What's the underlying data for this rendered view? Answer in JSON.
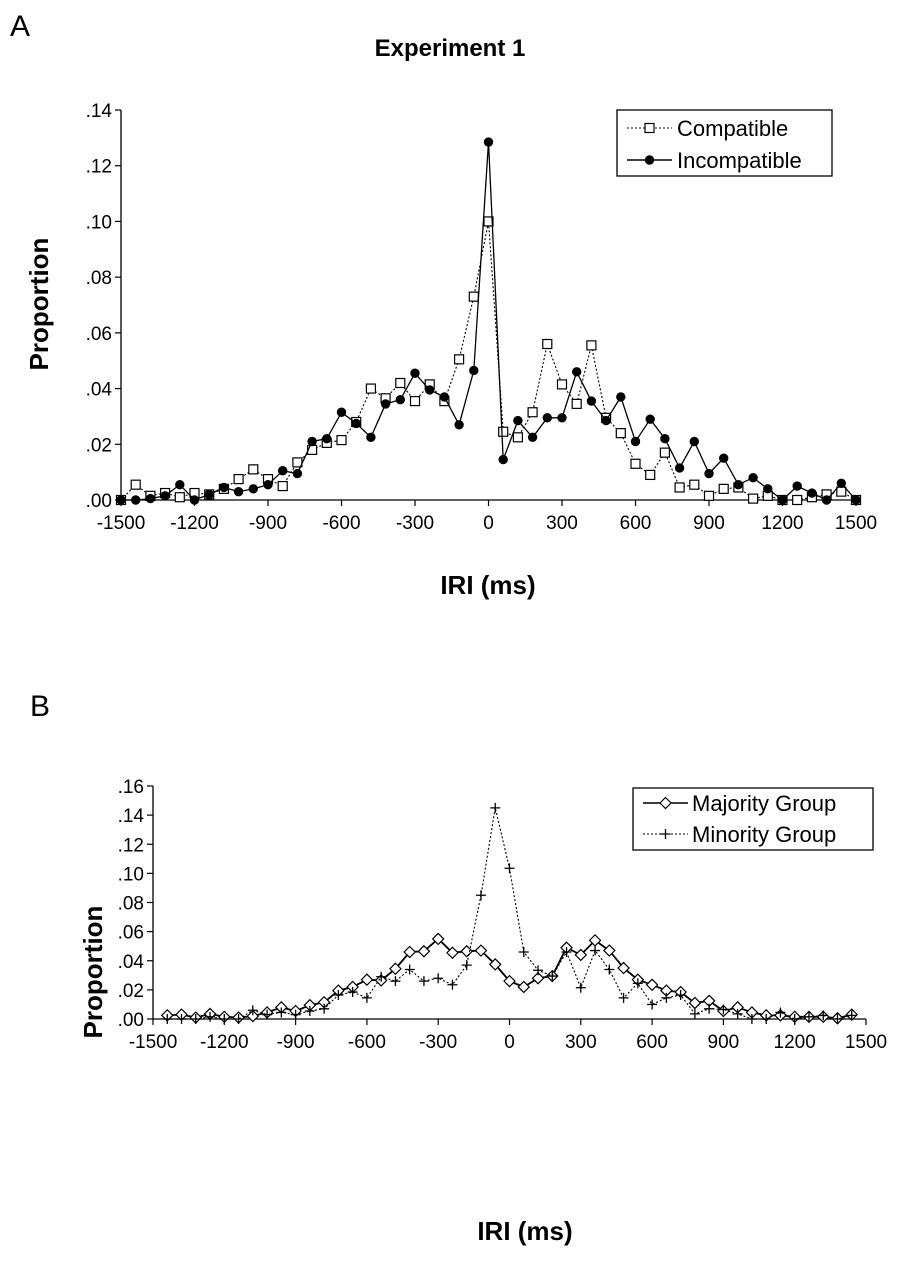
{
  "charts": [
    {
      "panel_label": "A",
      "title": "Experiment 1",
      "xlabel": "IRI (ms)",
      "ylabel": "Proportion",
      "xlim": [
        -1500,
        1500
      ],
      "ylim": [
        0,
        0.14
      ],
      "x_ticks": [
        -1500,
        -1200,
        -900,
        -600,
        -300,
        0,
        300,
        600,
        900,
        1200,
        1500
      ],
      "x_tick_labels": [
        "-1500",
        "-1200",
        "-900",
        "-600",
        "-300",
        "0",
        "300",
        "600",
        "900",
        "1200",
        "1500"
      ],
      "y_ticks": [
        0,
        0.02,
        0.04,
        0.06,
        0.08,
        0.1,
        0.12,
        0.14
      ],
      "y_tick_labels": [
        ".00",
        ".02",
        ".04",
        ".06",
        ".08",
        ".10",
        ".12",
        ".14"
      ],
      "legend": [
        "Compatible",
        "Incompatible"
      ]
    },
    {
      "panel_label": "B",
      "title": "",
      "xlabel": "IRI (ms)",
      "ylabel": "Proportion",
      "xlim": [
        -1500,
        1500
      ],
      "ylim": [
        0,
        0.16
      ],
      "x_ticks": [
        -1500,
        -1200,
        -900,
        -600,
        -300,
        0,
        300,
        600,
        900,
        1200,
        1500
      ],
      "x_tick_labels": [
        "-1500",
        "-1200",
        "-900",
        "-600",
        "-300",
        "0",
        "300",
        "600",
        "900",
        "1200",
        "1500"
      ],
      "y_ticks": [
        0,
        0.02,
        0.04,
        0.06,
        0.08,
        0.1,
        0.12,
        0.14,
        0.16
      ],
      "y_tick_labels": [
        ".00",
        ".02",
        ".04",
        ".06",
        ".08",
        ".10",
        ".12",
        ".14",
        ".16"
      ],
      "legend": [
        "Majority Group",
        "Minority Group"
      ]
    }
  ],
  "chart_data": [
    {
      "type": "line",
      "title": "Experiment 1",
      "xlabel": "IRI (ms)",
      "ylabel": "Proportion",
      "xlim": [
        -1500,
        1500
      ],
      "ylim": [
        0,
        0.14
      ],
      "grid": false,
      "legend_position": "top-right",
      "series": [
        {
          "name": "Compatible",
          "line_style": "dotted",
          "marker": "open-square",
          "x": [
            -1500,
            -1440,
            -1380,
            -1320,
            -1260,
            -1200,
            -1140,
            -1080,
            -1020,
            -960,
            -900,
            -840,
            -780,
            -720,
            -660,
            -600,
            -540,
            -480,
            -420,
            -360,
            -300,
            -240,
            -180,
            -120,
            -60,
            0,
            60,
            120,
            180,
            240,
            300,
            360,
            420,
            480,
            540,
            600,
            660,
            720,
            780,
            840,
            900,
            960,
            1020,
            1080,
            1140,
            1200,
            1260,
            1320,
            1380,
            1440,
            1500
          ],
          "y": [
            0.0,
            0.0055,
            0.0015,
            0.0025,
            0.001,
            0.0025,
            0.002,
            0.004,
            0.0075,
            0.011,
            0.0075,
            0.005,
            0.0135,
            0.018,
            0.0205,
            0.0215,
            0.028,
            0.04,
            0.0365,
            0.042,
            0.0355,
            0.0415,
            0.0355,
            0.0505,
            0.073,
            0.1,
            0.0245,
            0.0225,
            0.0315,
            0.056,
            0.0415,
            0.0345,
            0.0555,
            0.0295,
            0.024,
            0.013,
            0.009,
            0.017,
            0.0045,
            0.0055,
            0.0015,
            0.004,
            0.0045,
            0.0005,
            0.0015,
            0.0,
            0.0,
            0.001,
            0.002,
            0.003,
            0.0
          ]
        },
        {
          "name": "Incompatible",
          "line_style": "solid",
          "marker": "filled-circle",
          "x": [
            -1500,
            -1440,
            -1380,
            -1320,
            -1260,
            -1200,
            -1140,
            -1080,
            -1020,
            -960,
            -900,
            -840,
            -780,
            -720,
            -660,
            -600,
            -540,
            -480,
            -420,
            -360,
            -300,
            -240,
            -180,
            -120,
            -60,
            0,
            60,
            120,
            180,
            240,
            300,
            360,
            420,
            480,
            540,
            600,
            660,
            720,
            780,
            840,
            900,
            960,
            1020,
            1080,
            1140,
            1200,
            1260,
            1320,
            1380,
            1440,
            1500
          ],
          "y": [
            0.0,
            0.0,
            0.0005,
            0.0015,
            0.0055,
            0.0,
            0.002,
            0.0045,
            0.003,
            0.004,
            0.0055,
            0.0105,
            0.0095,
            0.021,
            0.022,
            0.0315,
            0.0275,
            0.0225,
            0.0345,
            0.036,
            0.0455,
            0.0395,
            0.037,
            0.027,
            0.0465,
            0.1285,
            0.0145,
            0.0285,
            0.0225,
            0.0295,
            0.0295,
            0.046,
            0.0355,
            0.0285,
            0.037,
            0.021,
            0.029,
            0.022,
            0.0115,
            0.021,
            0.0095,
            0.015,
            0.0055,
            0.008,
            0.004,
            0.0,
            0.005,
            0.0025,
            0.0,
            0.006,
            0.0
          ]
        }
      ]
    },
    {
      "type": "line",
      "xlabel": "IRI (ms)",
      "ylabel": "Proportion",
      "xlim": [
        -1500,
        1500
      ],
      "ylim": [
        0,
        0.16
      ],
      "grid": false,
      "legend_position": "top-right",
      "series": [
        {
          "name": "Majority Group",
          "line_style": "solid",
          "marker": "open-diamond",
          "x": [
            -1440,
            -1380,
            -1320,
            -1260,
            -1200,
            -1140,
            -1080,
            -1020,
            -960,
            -900,
            -840,
            -780,
            -720,
            -660,
            -600,
            -540,
            -480,
            -420,
            -360,
            -300,
            -240,
            -180,
            -120,
            -60,
            0,
            60,
            120,
            180,
            240,
            300,
            360,
            420,
            480,
            540,
            600,
            660,
            720,
            780,
            840,
            900,
            960,
            1020,
            1080,
            1140,
            1200,
            1260,
            1320,
            1380,
            1440
          ],
          "y": [
            0.0025,
            0.003,
            0.001,
            0.0035,
            0.0015,
            0.001,
            0.002,
            0.0045,
            0.008,
            0.0055,
            0.0095,
            0.0115,
            0.0195,
            0.022,
            0.027,
            0.0265,
            0.0345,
            0.046,
            0.0465,
            0.055,
            0.0455,
            0.0465,
            0.047,
            0.0375,
            0.026,
            0.022,
            0.028,
            0.0295,
            0.049,
            0.044,
            0.054,
            0.047,
            0.035,
            0.027,
            0.0235,
            0.0195,
            0.0185,
            0.011,
            0.0125,
            0.0055,
            0.008,
            0.0045,
            0.0025,
            0.0025,
            0.0015,
            0.0015,
            0.0015,
            0.0005,
            0.003
          ]
        },
        {
          "name": "Minority Group",
          "line_style": "dotted",
          "marker": "plus",
          "x": [
            -1440,
            -1380,
            -1320,
            -1260,
            -1200,
            -1140,
            -1080,
            -1020,
            -960,
            -900,
            -840,
            -780,
            -720,
            -660,
            -600,
            -540,
            -480,
            -420,
            -360,
            -300,
            -240,
            -180,
            -120,
            -60,
            0,
            60,
            120,
            180,
            240,
            300,
            360,
            420,
            480,
            540,
            600,
            660,
            720,
            780,
            840,
            900,
            960,
            1020,
            1080,
            1140,
            1200,
            1260,
            1320,
            1380,
            1440
          ],
          "y": [
            0.0,
            0.0,
            0.0,
            0.0015,
            0.0,
            0.0,
            0.006,
            0.003,
            0.0045,
            0.003,
            0.0055,
            0.007,
            0.0165,
            0.0185,
            0.0145,
            0.029,
            0.026,
            0.034,
            0.026,
            0.028,
            0.0235,
            0.037,
            0.085,
            0.145,
            0.1035,
            0.046,
            0.0335,
            0.0295,
            0.046,
            0.0215,
            0.047,
            0.034,
            0.0145,
            0.0245,
            0.01,
            0.0145,
            0.0165,
            0.0035,
            0.007,
            0.0065,
            0.0035,
            0.0,
            0.0,
            0.0045,
            0.0,
            0.0015,
            0.0025,
            0.0,
            0.0025
          ]
        }
      ]
    }
  ]
}
